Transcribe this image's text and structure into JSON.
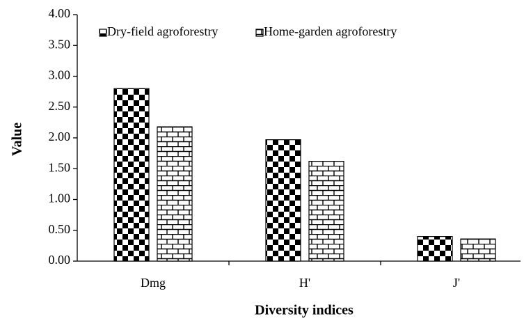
{
  "chart_data": {
    "type": "bar",
    "x_label": "Diversity indices",
    "y_label": "Value",
    "categories": [
      "Dmg",
      "H'",
      "J'"
    ],
    "series": [
      {
        "name": "Dry-field agroforestry",
        "color": "#000000",
        "pattern": "checker",
        "values": [
          2.8,
          1.97,
          0.4
        ]
      },
      {
        "name": "Home-garden agroforestry",
        "color": "#000000",
        "pattern": "brick",
        "values": [
          2.18,
          1.62,
          0.36
        ]
      }
    ],
    "ylim": [
      0,
      4
    ],
    "yticks": [
      {
        "value": 0,
        "label": "0.00"
      },
      {
        "value": 0.5,
        "label": "0.50"
      },
      {
        "value": 1,
        "label": "1.00"
      },
      {
        "value": 1.5,
        "label": "1.50"
      },
      {
        "value": 2,
        "label": "2.00"
      },
      {
        "value": 2.5,
        "label": "2.50"
      },
      {
        "value": 3,
        "label": "3.00"
      },
      {
        "value": 3.5,
        "label": "3.50"
      },
      {
        "value": 4,
        "label": "4.00"
      }
    ],
    "grid": false,
    "legend": "top-left"
  }
}
